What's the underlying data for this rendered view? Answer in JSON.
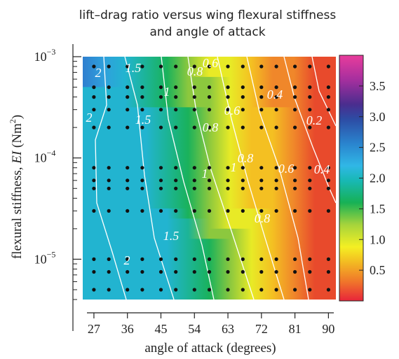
{
  "chart_data": {
    "type": "heatmap",
    "title_lines": [
      "lift–drag ratio versus wing flexural stiffness",
      "and angle of attack"
    ],
    "xlabel": "angle of attack (degrees)",
    "ylabel": {
      "main": "flexural stiffness, ",
      "italic": "EI",
      "unit": " (Nm",
      "power": "2",
      "close": ")"
    },
    "x_scale": "linear",
    "xlim": [
      24,
      92
    ],
    "x_ticks": [
      27,
      36,
      45,
      54,
      63,
      72,
      81,
      90
    ],
    "x_tick_labels": [
      "27",
      "36",
      "45",
      "54",
      "63",
      "72",
      "81",
      "90"
    ],
    "y_scale": "log",
    "ylim": [
      4e-06,
      0.001
    ],
    "y_ticks": [
      {
        "value": 1e-05,
        "base": "10",
        "exp": "−5"
      },
      {
        "value": 0.0001,
        "base": "10",
        "exp": "−4"
      },
      {
        "value": 0.001,
        "base": "10",
        "exp": "−3"
      }
    ],
    "colorbar": {
      "range": [
        0,
        4
      ],
      "ticks": [
        0.5,
        1.0,
        1.5,
        2.0,
        2.5,
        3.0,
        3.5
      ],
      "tick_labels": [
        "0.5",
        "1.0",
        "1.5",
        "2.0",
        "2.5",
        "3.0",
        "3.5"
      ],
      "colormap": [
        "#e8253a",
        "#f0772a",
        "#f3bd22",
        "#f4ef23",
        "#a6d43c",
        "#17b155",
        "#18b8b4",
        "#30b7e6",
        "#2a84ce",
        "#2d4ca4",
        "#4a2d8e",
        "#a52f9e",
        "#e93c9c"
      ]
    },
    "samples": {
      "x": [
        27,
        31,
        36,
        40,
        45,
        49,
        54,
        58,
        63,
        67,
        72,
        76,
        81,
        85,
        90
      ],
      "y": [
        0.0008,
        0.0005,
        0.0004,
        0.0003,
        0.0002,
        8e-05,
        6e-05,
        5e-05,
        3e-05,
        1e-05,
        7.5e-06,
        5e-06
      ]
    },
    "contour_labels": [
      "2",
      "1.5",
      "1.5",
      "2",
      "0.8",
      "0.6",
      "0.4",
      "0.8",
      "1",
      "0.8",
      "0.6",
      "0.4",
      "1",
      "1.5",
      "2",
      "0.8",
      "1",
      "0.6",
      "0.2"
    ]
  }
}
